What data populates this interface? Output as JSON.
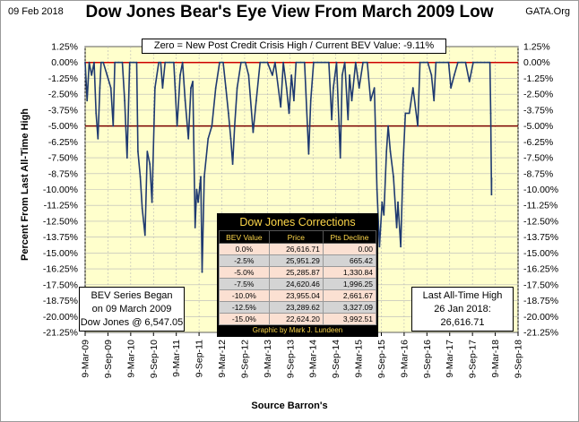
{
  "header": {
    "date": "09 Feb 2018",
    "title": "Dow Jones Bear's Eye View From March 2009 Low",
    "source": "GATA.Org"
  },
  "banner": "Zero = New Post Credit Crisis High / Current BEV Value:  -9.11%",
  "box_left": {
    "line1": "BEV Series Began",
    "line2": "on 09 March 2009",
    "line3": "Dow Jones @ 6,547.05"
  },
  "box_right": {
    "line1": "Last All-Time High",
    "line2": "26 Jan 2018:",
    "line3": "26,616.71"
  },
  "table": {
    "title": "Dow Jones Corrections",
    "headers": [
      "BEV Value",
      "Price",
      "Pts Decline"
    ],
    "rows": [
      [
        "0.0%",
        "26,616.71",
        "0.00"
      ],
      [
        "-2.5%",
        "25,951.29",
        "665.42"
      ],
      [
        "-5.0%",
        "25,285.87",
        "1,330.84"
      ],
      [
        "-7.5%",
        "24,620.46",
        "1,996.25"
      ],
      [
        "-10.0%",
        "23,955.04",
        "2,661.67"
      ],
      [
        "-12.5%",
        "23,289.62",
        "3,327.09"
      ],
      [
        "-15.0%",
        "22,624.20",
        "3,992.51"
      ]
    ],
    "credit": "Graphic by Mark J. Lundeen"
  },
  "colors": {
    "plot_bg": "#ffffcc",
    "line": "#1f3a70",
    "ref_zero": "#cc0000",
    "ref_minus5": "#7a0000",
    "grid": "#b8b8b8"
  },
  "chart_data": {
    "type": "line",
    "title": "Dow Jones Bear's Eye View From March 2009 Low",
    "xlabel": "Source Barron's",
    "ylabel": "Percent From Last All-Time High",
    "ylim": [
      -21.25,
      1.25
    ],
    "xlim": [
      "2009-03-09",
      "2018-09-09"
    ],
    "grid": true,
    "y_ticks": [
      "1.25%",
      "0.00%",
      "-1.25%",
      "-2.50%",
      "-3.75%",
      "-5.00%",
      "-6.25%",
      "-7.50%",
      "-8.75%",
      "-10.00%",
      "-11.25%",
      "-12.50%",
      "-13.75%",
      "-15.00%",
      "-16.25%",
      "-17.50%",
      "-18.75%",
      "-20.00%",
      "-21.25%"
    ],
    "x_ticks": [
      "9-Mar-09",
      "9-Sep-09",
      "9-Mar-10",
      "9-Sep-10",
      "9-Mar-11",
      "9-Sep-11",
      "9-Mar-12",
      "9-Sep-12",
      "9-Mar-13",
      "9-Sep-13",
      "9-Mar-14",
      "9-Sep-14",
      "9-Mar-15",
      "9-Sep-15",
      "9-Mar-16",
      "9-Sep-16",
      "9-Mar-17",
      "9-Sep-17",
      "9-Mar-18",
      "9-Sep-18"
    ],
    "reference_lines": [
      0,
      -5
    ],
    "series": [
      {
        "x": [
          "2009-03-09",
          "2009-03-25",
          "2009-04-10",
          "2009-04-30",
          "2009-05-20",
          "2009-06-05",
          "2009-06-20",
          "2009-07-05",
          "2009-07-15",
          "2009-08-01",
          "2009-09-01",
          "2009-10-01",
          "2009-10-20",
          "2009-11-02",
          "2009-12-01",
          "2010-01-01",
          "2010-01-20",
          "2010-02-08",
          "2010-03-01",
          "2010-04-01",
          "2010-04-26",
          "2010-05-06",
          "2010-05-25",
          "2010-06-10",
          "2010-07-02",
          "2010-07-20",
          "2010-08-10",
          "2010-08-27",
          "2010-09-20",
          "2010-10-20",
          "2010-11-05",
          "2010-11-20",
          "2010-12-10",
          "2011-01-15",
          "2011-02-18",
          "2011-03-16",
          "2011-04-10",
          "2011-04-29",
          "2011-05-20",
          "2011-06-15",
          "2011-07-05",
          "2011-07-20",
          "2011-08-08",
          "2011-08-20",
          "2011-09-01",
          "2011-09-22",
          "2011-10-03",
          "2011-10-20",
          "2011-11-20",
          "2011-12-20",
          "2012-01-20",
          "2012-02-20",
          "2012-03-20",
          "2012-04-10",
          "2012-05-01",
          "2012-05-20",
          "2012-06-04",
          "2012-06-20",
          "2012-07-10",
          "2012-08-10",
          "2012-09-14",
          "2012-10-10",
          "2012-11-15",
          "2012-12-10",
          "2013-01-10",
          "2013-02-10",
          "2013-03-10",
          "2013-04-18",
          "2013-05-10",
          "2013-06-24",
          "2013-07-15",
          "2013-08-10",
          "2013-08-30",
          "2013-09-18",
          "2013-10-08",
          "2013-10-25",
          "2013-12-01",
          "2014-01-01",
          "2014-02-03",
          "2014-02-20",
          "2014-03-15",
          "2014-04-15",
          "2014-05-15",
          "2014-06-15",
          "2014-07-15",
          "2014-08-07",
          "2014-08-20",
          "2014-09-15",
          "2014-10-15",
          "2014-10-30",
          "2014-11-20",
          "2014-12-16",
          "2014-12-28",
          "2015-01-15",
          "2015-02-15",
          "2015-03-15",
          "2015-04-15",
          "2015-05-19",
          "2015-06-15",
          "2015-07-15",
          "2015-08-05",
          "2015-08-25",
          "2015-09-15",
          "2015-09-29",
          "2015-10-20",
          "2015-11-03",
          "2015-11-20",
          "2015-12-15",
          "2016-01-10",
          "2016-01-20",
          "2016-02-11",
          "2016-03-01",
          "2016-03-20",
          "2016-04-20",
          "2016-05-20",
          "2016-06-27",
          "2016-07-15",
          "2016-08-15",
          "2016-09-15",
          "2016-10-15",
          "2016-11-04",
          "2016-11-20",
          "2016-12-20",
          "2017-01-20",
          "2017-02-20",
          "2017-03-01",
          "2017-03-20",
          "2017-04-15",
          "2017-05-15",
          "2017-06-15",
          "2017-07-15",
          "2017-08-15",
          "2017-09-15",
          "2017-10-15",
          "2017-11-15",
          "2017-12-15",
          "2018-01-10",
          "2018-01-26",
          "2018-02-02",
          "2018-02-08",
          "2018-02-09"
        ],
        "y": [
          0,
          -3,
          0,
          -1,
          0,
          -4,
          -6,
          -2,
          0,
          0,
          -1,
          -2,
          -5,
          0,
          0,
          0,
          -3,
          -7.5,
          0,
          0,
          0,
          -7,
          -9,
          -11.5,
          -13.6,
          -7,
          -8,
          -11,
          -2,
          0,
          0,
          -2,
          0,
          0,
          0,
          -5,
          -1,
          0,
          -3,
          -6,
          -2,
          -1.5,
          -13,
          -10,
          -11,
          -9,
          -16.5,
          -9,
          -6,
          -5,
          -2,
          0,
          0,
          -2,
          -4,
          -6,
          -8,
          -5,
          -2,
          0,
          0,
          -1,
          -5.5,
          -3,
          0,
          0,
          0,
          -1,
          0,
          -3.5,
          0,
          -2,
          -4,
          -1,
          -3,
          0,
          0,
          0,
          -7.2,
          -3,
          0,
          0,
          0,
          0,
          0,
          -4.5,
          -2,
          0,
          -7.5,
          -1,
          0,
          -4.5,
          -1,
          -3,
          0,
          -2,
          0,
          0,
          -3,
          -2,
          -10,
          -14.5,
          -11,
          -12,
          -7,
          -5,
          -7,
          -9,
          -13,
          -11,
          -14.5,
          -8,
          -4,
          -4,
          -2,
          -5,
          0,
          0,
          0,
          -1,
          -3,
          0,
          0,
          0,
          0,
          0,
          -2,
          -1,
          0,
          0,
          0,
          -1.5,
          0,
          0,
          0,
          0,
          0,
          0,
          -4,
          -10.4,
          -9.11
        ]
      }
    ]
  }
}
